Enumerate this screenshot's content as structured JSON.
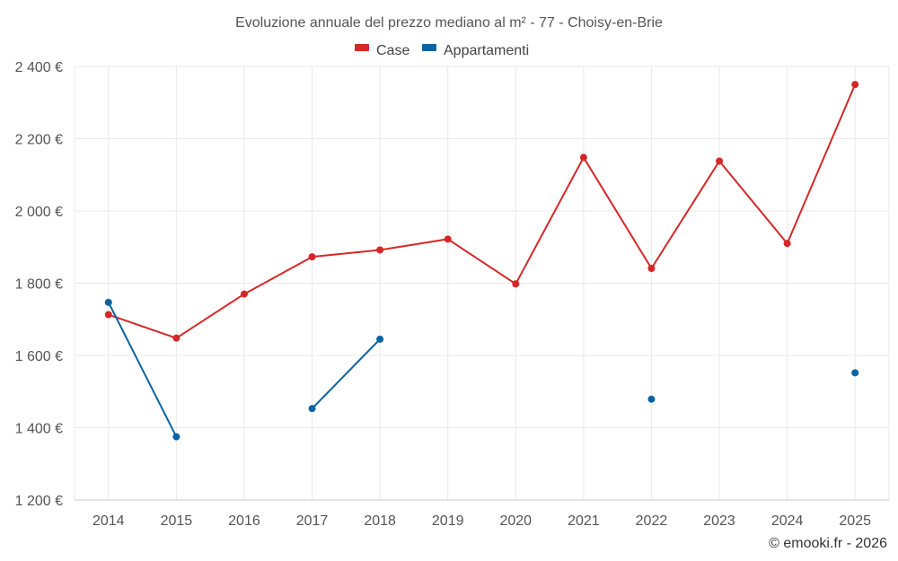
{
  "chart_data": {
    "type": "line",
    "title": "Evoluzione annuale del prezzo mediano al m² - 77 - Choisy-en-Brie",
    "categories": [
      "2014",
      "2015",
      "2016",
      "2017",
      "2018",
      "2019",
      "2020",
      "2021",
      "2022",
      "2023",
      "2024",
      "2025"
    ],
    "ylim": [
      1200,
      2400
    ],
    "yticks": [
      1200,
      1400,
      1600,
      1800,
      2000,
      2200,
      2400
    ],
    "ytick_labels": [
      "1 200 €",
      "1 400 €",
      "1 600 €",
      "1 800 €",
      "2 000 €",
      "2 200 €",
      "2 400 €"
    ],
    "grid": true,
    "legend_position": "top-center",
    "series": [
      {
        "name": "Case",
        "color": "#d62728",
        "values": [
          1713,
          1648,
          1770,
          1873,
          1892,
          1922,
          1798,
          2148,
          1841,
          2138,
          1910,
          2350
        ]
      },
      {
        "name": "Appartamenti",
        "color": "#0a64a4",
        "values": [
          1747,
          1375,
          null,
          1453,
          1645,
          null,
          null,
          null,
          1479,
          null,
          null,
          1552
        ]
      }
    ]
  },
  "credit": "© emooki.fr - 2026"
}
